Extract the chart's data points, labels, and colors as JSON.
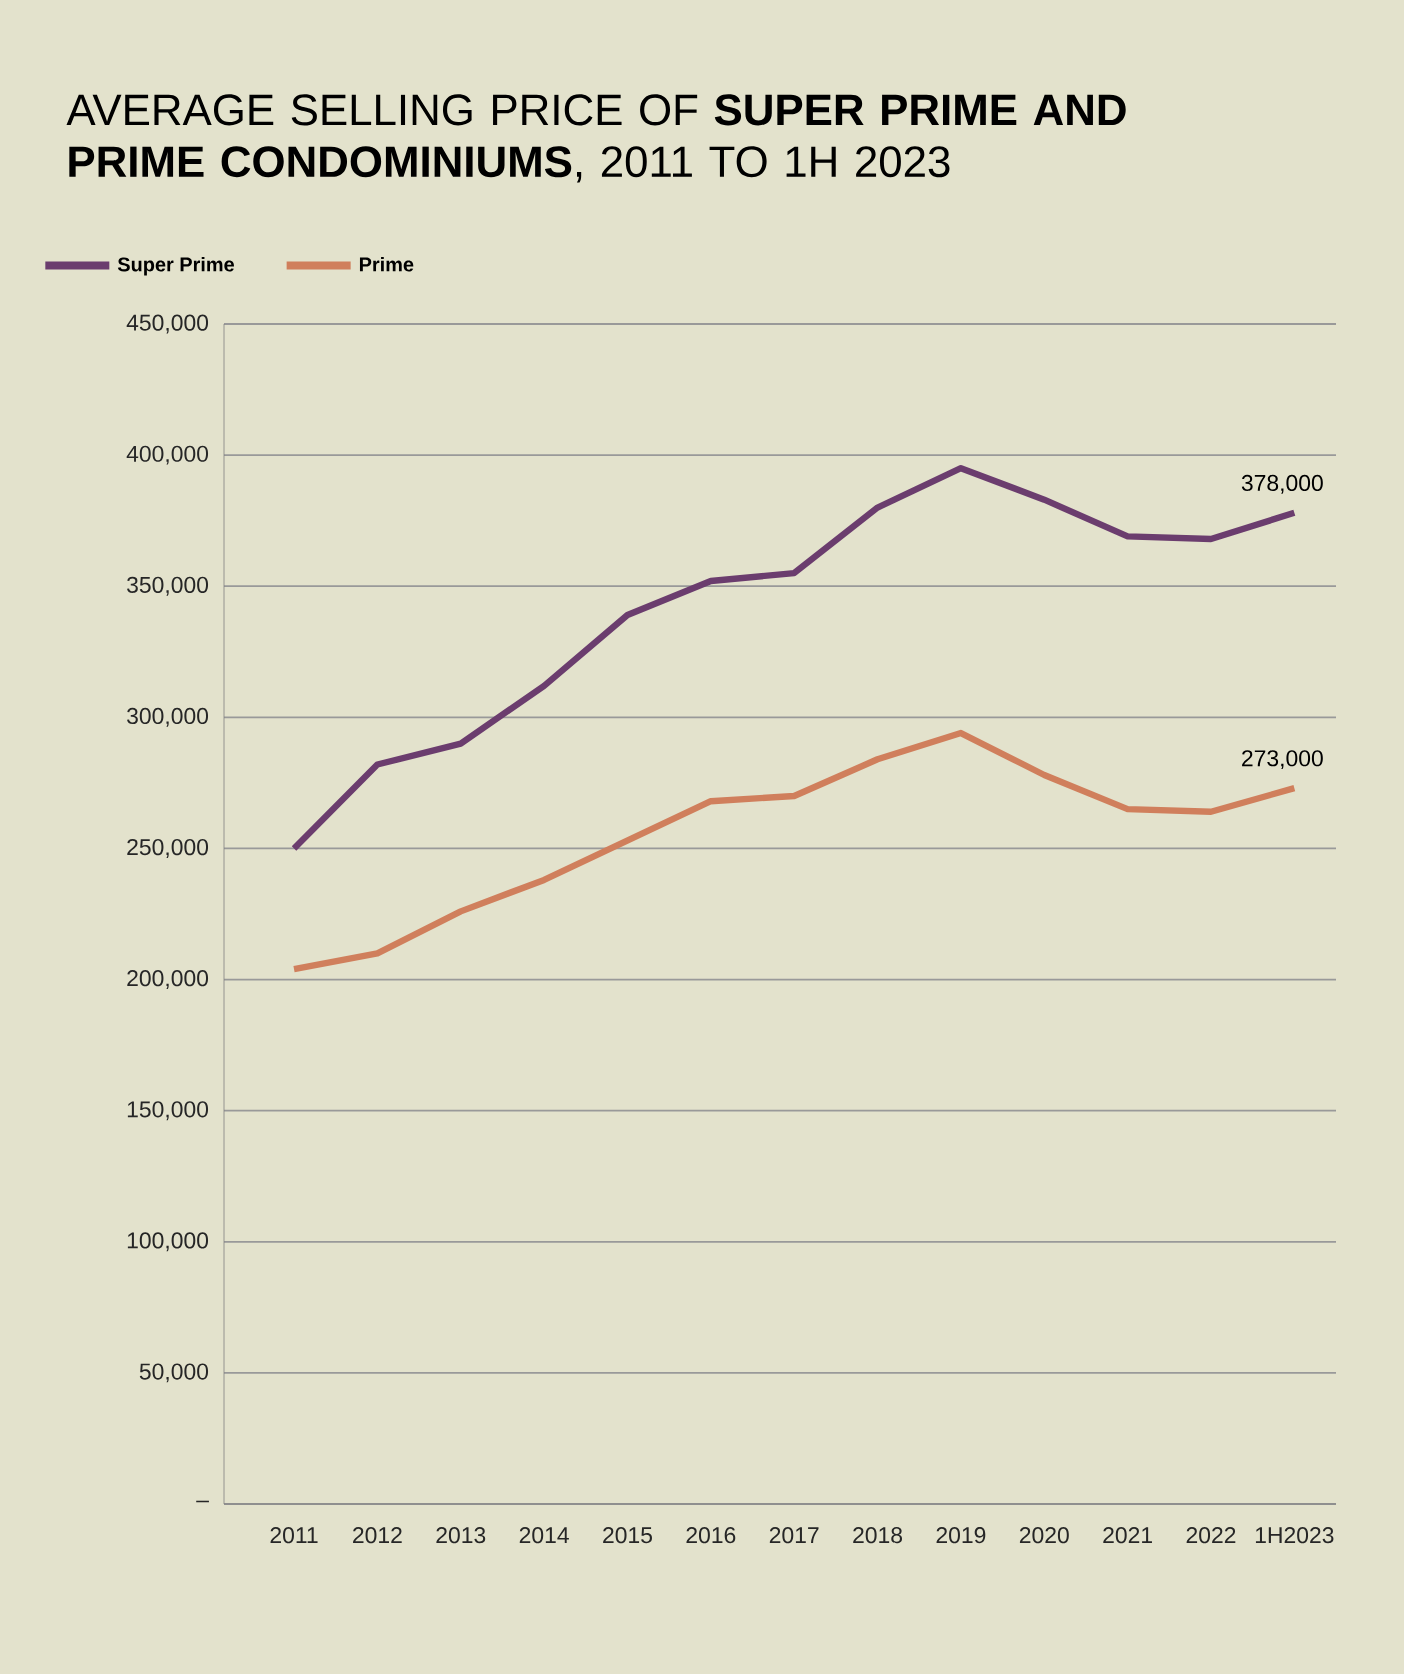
{
  "chart_data": {
    "type": "line",
    "title": "AVERAGE SELLING PRICE OF **SUPER PRIME AND PRIME CONDOMINIUMS**, 2011 TO 1H 2023",
    "categories": [
      "2011",
      "2012",
      "2013",
      "2014",
      "2015",
      "2016",
      "2017",
      "2018",
      "2019",
      "2020",
      "2021",
      "2022",
      "1H2023"
    ],
    "series": [
      {
        "name": "Super Prime",
        "color": "#6b3d6e",
        "values": [
          250000,
          282000,
          290000,
          312000,
          339000,
          352000,
          355000,
          380000,
          395000,
          383000,
          369000,
          368000,
          378000
        ],
        "value_labels": [
          null,
          null,
          null,
          null,
          null,
          null,
          null,
          null,
          null,
          null,
          null,
          null,
          "378,000"
        ]
      },
      {
        "name": "Prime",
        "color": "#d07f5c",
        "values": [
          204000,
          210000,
          226000,
          238000,
          253000,
          268000,
          270000,
          284000,
          294000,
          278000,
          265000,
          264000,
          273000
        ],
        "value_labels": [
          null,
          null,
          null,
          null,
          null,
          null,
          null,
          null,
          null,
          null,
          null,
          null,
          "273,000"
        ]
      }
    ],
    "ylim": [
      0,
      450000
    ],
    "yticks": [
      {
        "value": 0,
        "label": "–"
      },
      {
        "value": 50000,
        "label": "50,000"
      },
      {
        "value": 100000,
        "label": "100,000"
      },
      {
        "value": 150000,
        "label": "150,000"
      },
      {
        "value": 200000,
        "label": "200,000"
      },
      {
        "value": 250000,
        "label": "250,000"
      },
      {
        "value": 300000,
        "label": "300,000"
      },
      {
        "value": 350000,
        "label": "350,000"
      },
      {
        "value": 400000,
        "label": "400,000"
      },
      {
        "value": 450000,
        "label": "450,000"
      }
    ],
    "grid": "y",
    "legend": "top left",
    "marker": "none",
    "line_style": "solid"
  }
}
